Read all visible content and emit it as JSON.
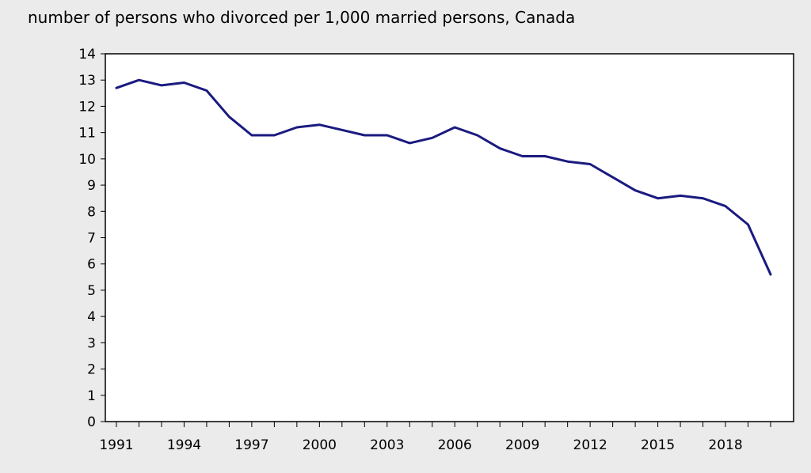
{
  "chart_data": {
    "type": "line",
    "title": "",
    "ylabel": "number of persons who divorced per 1,000 married persons, Canada",
    "xlabel": "",
    "ylim": [
      0,
      14
    ],
    "yticks": [
      0,
      1,
      2,
      3,
      4,
      5,
      6,
      7,
      8,
      9,
      10,
      11,
      12,
      13,
      14
    ],
    "xlim": [
      1991,
      2020
    ],
    "xtick_labels": [
      "1991",
      "1994",
      "1997",
      "2000",
      "2003",
      "2006",
      "2009",
      "2012",
      "2015",
      "2018"
    ],
    "grid": false,
    "line_color": "#1a1a80",
    "series": [
      {
        "x": [
          1991,
          1992,
          1993,
          1994,
          1995,
          1996,
          1997,
          1998,
          1999,
          2000,
          2001,
          2002,
          2003,
          2004,
          2005,
          2006,
          2007,
          2008,
          2009,
          2010,
          2011,
          2012,
          2013,
          2014,
          2015,
          2016,
          2017,
          2018,
          2019,
          2020
        ],
        "values": [
          12.7,
          13.0,
          12.8,
          12.9,
          12.6,
          11.6,
          10.9,
          10.9,
          11.2,
          11.3,
          11.1,
          10.9,
          10.9,
          10.6,
          10.8,
          11.2,
          10.9,
          10.4,
          10.1,
          10.1,
          9.9,
          9.8,
          9.3,
          8.8,
          8.5,
          8.6,
          8.5,
          8.2,
          7.5,
          5.6
        ]
      }
    ]
  }
}
